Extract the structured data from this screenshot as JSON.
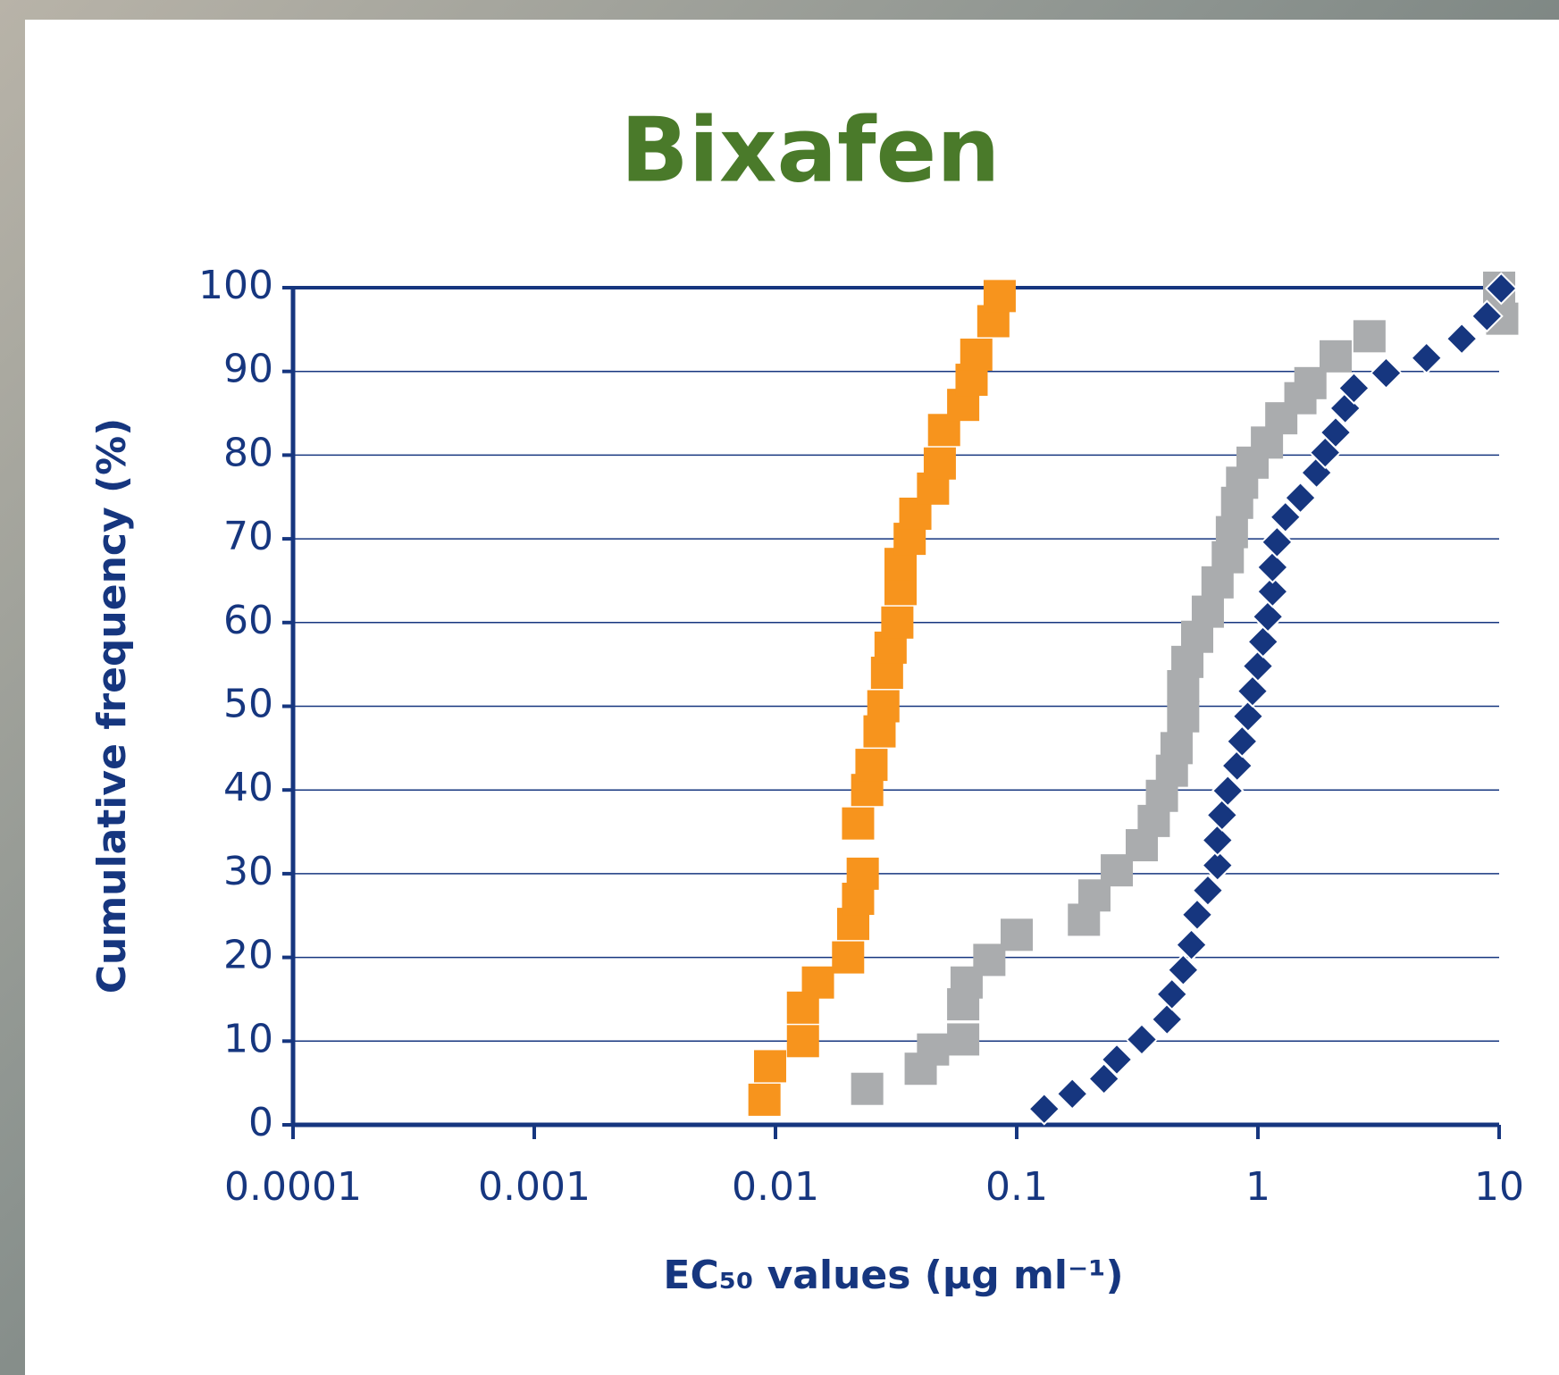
{
  "chart_data": {
    "type": "scatter",
    "title": "Bixafen",
    "xlabel": "EC₅₀ values (µg ml⁻¹)",
    "ylabel": "Cumulative frequency (%)",
    "xscale": "log",
    "xlim": [
      0.0001,
      10
    ],
    "xticks": [
      0.0001,
      0.001,
      0.01,
      0.1,
      1,
      10
    ],
    "ylim": [
      0,
      100
    ],
    "yticks": [
      0,
      10,
      20,
      30,
      40,
      50,
      60,
      70,
      80,
      90,
      100
    ],
    "grid": true,
    "series": [
      {
        "color": "#f7941d",
        "marker": "square",
        "x": [
          0.009,
          0.0095,
          0.013,
          0.013,
          0.015,
          0.02,
          0.021,
          0.022,
          0.023,
          0.022,
          0.024,
          0.025,
          0.027,
          0.028,
          0.029,
          0.03,
          0.032,
          0.033,
          0.033,
          0.036,
          0.038,
          0.045,
          0.048,
          0.05,
          0.06,
          0.065,
          0.068,
          0.08,
          0.085
        ],
        "values": [
          3,
          7,
          10,
          14,
          17,
          20,
          24,
          27,
          30,
          36,
          40,
          43,
          47,
          50,
          54,
          57,
          60,
          64,
          67,
          70,
          73,
          76,
          79,
          83,
          86,
          89,
          92,
          96,
          99
        ]
      },
      {
        "color": "#aaacae",
        "marker": "square",
        "x": [
          0.024,
          0.04,
          0.045,
          0.06,
          0.06,
          0.062,
          0.077,
          0.1,
          0.19,
          0.21,
          0.26,
          0.33,
          0.37,
          0.4,
          0.44,
          0.46,
          0.49,
          0.49,
          0.51,
          0.56,
          0.62,
          0.68,
          0.75,
          0.78,
          0.82,
          0.86,
          0.95,
          1.09,
          1.25,
          1.5,
          1.65,
          2.1,
          2.9,
          10.3,
          10
        ],
        "values": [
          4.3,
          6.7,
          9,
          10.2,
          14.4,
          17,
          19.7,
          22.7,
          24.5,
          27.4,
          30.4,
          33.4,
          36.3,
          39.3,
          42.3,
          45,
          48.8,
          52.4,
          55.3,
          58.3,
          61.3,
          64.8,
          67.8,
          70.8,
          74.3,
          76.7,
          79.1,
          81.5,
          84.4,
          86.8,
          88.6,
          91.8,
          94.2,
          96.3,
          100
        ]
      },
      {
        "color": "#16367f",
        "marker": "diamond",
        "x": [
          0.13,
          0.17,
          0.23,
          0.26,
          0.33,
          0.42,
          0.44,
          0.49,
          0.53,
          0.56,
          0.62,
          0.68,
          0.68,
          0.71,
          0.75,
          0.82,
          0.86,
          0.91,
          0.95,
          1.0,
          1.05,
          1.1,
          1.15,
          1.15,
          1.2,
          1.3,
          1.5,
          1.75,
          1.9,
          2.1,
          2.3,
          2.5,
          3.4,
          5,
          7,
          8.9,
          10.2
        ],
        "values": [
          1.9,
          3.7,
          5.5,
          7.8,
          10.2,
          12.6,
          15.6,
          18.5,
          21.5,
          25.1,
          28,
          31,
          34,
          37,
          39.9,
          42.9,
          45.8,
          48.8,
          51.8,
          54.8,
          57.7,
          60.7,
          63.7,
          66.6,
          69.6,
          72.6,
          74.9,
          77.9,
          80.3,
          82.7,
          85.6,
          88,
          89.8,
          91.6,
          93.9,
          96.6,
          99.9
        ]
      }
    ]
  }
}
